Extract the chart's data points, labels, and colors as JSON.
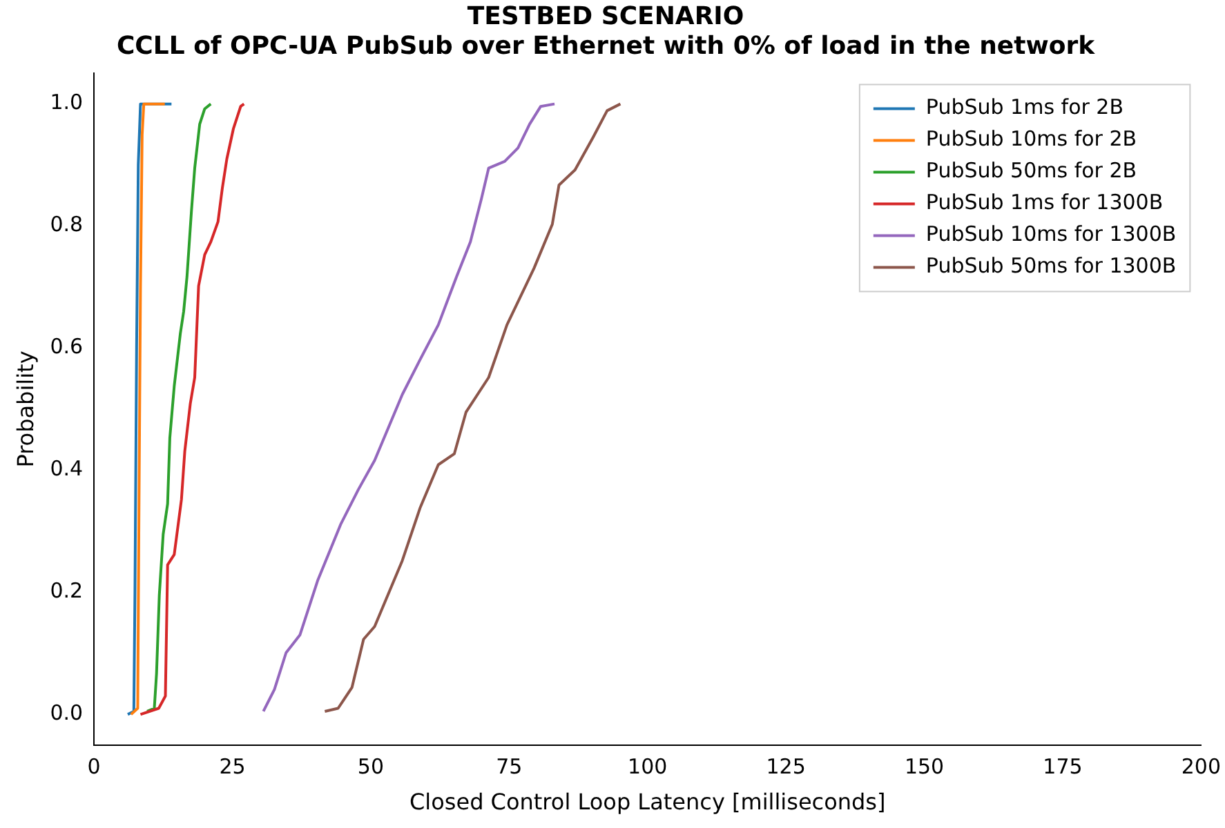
{
  "chart_data": {
    "type": "line",
    "title": "TESTBED SCENARIO",
    "subtitle": "CCLL of OPC-UA PubSub over Ethernet with 0% of load in the network",
    "xlabel": "Closed Control Loop Latency [milliseconds]",
    "ylabel": "Probability",
    "xlim": [
      0,
      200
    ],
    "xticks": [
      0,
      25,
      50,
      75,
      100,
      125,
      150,
      175,
      200
    ],
    "ylim": [
      -0.05,
      1.05
    ],
    "yticks": [
      {
        "value": 0,
        "label": "0.0"
      },
      {
        "value": 0.2,
        "label": "0.2"
      },
      {
        "value": 0.4,
        "label": "0.4"
      },
      {
        "value": 0.6,
        "label": "0.6"
      },
      {
        "value": 0.8,
        "label": "0.8"
      },
      {
        "value": 1,
        "label": "1.0"
      }
    ],
    "grid": false,
    "legend": "top right",
    "marker": "none",
    "line_style": "solid",
    "series": [
      {
        "name": "PubSub 1ms for 2B",
        "color": "#1f77b4",
        "x": [
          6.1,
          7.2,
          7.4,
          7.7,
          8.0,
          8.4,
          14
        ],
        "values": [
          0,
          0.005,
          0.2,
          0.6,
          0.9,
          1.0,
          1.0
        ]
      },
      {
        "name": "PubSub 10ms for 2B",
        "color": "#ff7f0e",
        "x": [
          6.7,
          7.9,
          8.1,
          8.4,
          8.7,
          9.0,
          12.8
        ],
        "values": [
          0,
          0.01,
          0.3,
          0.7,
          0.95,
          1.0,
          1.0
        ]
      },
      {
        "name": "PubSub 50ms for 2B",
        "color": "#2ca02c",
        "x": [
          9.6,
          10.9,
          11.3,
          11.8,
          12.5,
          13.3,
          13.7,
          14.5,
          15.6,
          16.2,
          16.8,
          17.6,
          18.2,
          19.1,
          20.0,
          21.1
        ],
        "values": [
          0.005,
          0.01,
          0.067,
          0.195,
          0.295,
          0.345,
          0.453,
          0.538,
          0.624,
          0.66,
          0.717,
          0.824,
          0.895,
          0.967,
          0.992,
          1.0
        ]
      },
      {
        "name": "PubSub 1ms for 1300B",
        "color": "#d62728",
        "x": [
          8.4,
          11.7,
          12.9,
          13.3,
          14.5,
          15.8,
          16.4,
          17.4,
          18.2,
          18.9,
          20.0,
          21.1,
          22.4,
          23.2,
          24.0,
          25.2,
          26.5,
          27.1
        ],
        "values": [
          0,
          0.01,
          0.03,
          0.245,
          0.262,
          0.352,
          0.431,
          0.509,
          0.552,
          0.702,
          0.753,
          0.774,
          0.807,
          0.863,
          0.91,
          0.96,
          0.996,
          1.0
        ]
      },
      {
        "name": "PubSub 10ms for 1300B",
        "color": "#9467bd",
        "x": [
          30.6,
          32.6,
          34.7,
          37.2,
          40.4,
          44.6,
          47.8,
          50.7,
          55.7,
          58.9,
          62.2,
          65.5,
          68.0,
          70.0,
          71.3,
          74.2,
          76.6,
          78.7,
          80.7,
          83.2
        ],
        "values": [
          0.005,
          0.041,
          0.101,
          0.13,
          0.219,
          0.312,
          0.369,
          0.416,
          0.524,
          0.581,
          0.638,
          0.717,
          0.774,
          0.845,
          0.895,
          0.906,
          0.928,
          0.967,
          0.996,
          1.0
        ]
      },
      {
        "name": "PubSub 50ms for 1300B",
        "color": "#8c564b",
        "x": [
          41.7,
          44.1,
          46.6,
          48.7,
          50.7,
          55.7,
          58.9,
          62.2,
          65.1,
          67.2,
          71.3,
          74.6,
          79.5,
          82.8,
          84.0,
          86.9,
          90.2,
          92.7,
          95.1
        ],
        "values": [
          0.005,
          0.01,
          0.044,
          0.123,
          0.144,
          0.252,
          0.338,
          0.409,
          0.427,
          0.495,
          0.552,
          0.638,
          0.731,
          0.803,
          0.867,
          0.892,
          0.946,
          0.989,
          1.0
        ]
      }
    ]
  }
}
